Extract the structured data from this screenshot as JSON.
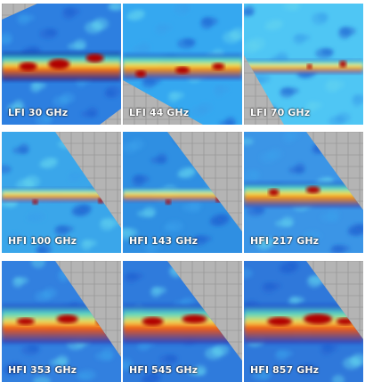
{
  "panels": [
    {
      "label": "LFI 30 GHz",
      "band": "strong",
      "sources": [
        [
          0.22,
          0.52,
          10,
          5
        ],
        [
          0.48,
          0.5,
          12,
          6
        ],
        [
          0.78,
          0.45,
          10,
          5
        ]
      ],
      "background": "#2d7fe0"
    },
    {
      "label": "LFI 44 GHz",
      "band": "medium",
      "sources": [
        [
          0.15,
          0.58,
          6,
          4
        ],
        [
          0.5,
          0.55,
          8,
          4
        ],
        [
          0.8,
          0.52,
          7,
          4
        ]
      ],
      "background": "#35a8f0"
    },
    {
      "label": "LFI 70 GHz",
      "band": "thin",
      "sources": [
        [
          0.55,
          0.52,
          3,
          3
        ],
        [
          0.83,
          0.5,
          4,
          4
        ]
      ],
      "background": "#4fc6f4"
    },
    {
      "label": "HFI 100 GHz",
      "band": "thin",
      "sources": [
        [
          0.28,
          0.58,
          3,
          3
        ],
        [
          0.83,
          0.57,
          3,
          3
        ]
      ],
      "background": "#3aa6ea"
    },
    {
      "label": "HFI 143 GHz",
      "band": "thin",
      "sources": [
        [
          0.38,
          0.58,
          3,
          3
        ],
        [
          0.8,
          0.56,
          3,
          3
        ]
      ],
      "background": "#2f8fe2"
    },
    {
      "label": "HFI 217 GHz",
      "band": "medium",
      "sources": [
        [
          0.25,
          0.5,
          6,
          4
        ],
        [
          0.58,
          0.48,
          8,
          4
        ]
      ],
      "background": "#3b95e6"
    },
    {
      "label": "HFI 353 GHz",
      "band": "wide",
      "sources": [
        [
          0.2,
          0.5,
          10,
          4
        ],
        [
          0.55,
          0.48,
          12,
          5
        ],
        [
          0.85,
          0.5,
          8,
          4
        ]
      ],
      "background": "#3280df"
    },
    {
      "label": "HFI 545 GHz",
      "band": "wide",
      "sources": [
        [
          0.25,
          0.5,
          12,
          5
        ],
        [
          0.6,
          0.48,
          14,
          5
        ],
        [
          0.85,
          0.5,
          9,
          4
        ]
      ],
      "background": "#2f7bdc"
    },
    {
      "label": "HFI 857 GHz",
      "band": "wide",
      "sources": [
        [
          0.3,
          0.5,
          14,
          5
        ],
        [
          0.62,
          0.48,
          16,
          6
        ],
        [
          0.85,
          0.5,
          10,
          4
        ]
      ],
      "background": "#2f78da"
    }
  ]
}
